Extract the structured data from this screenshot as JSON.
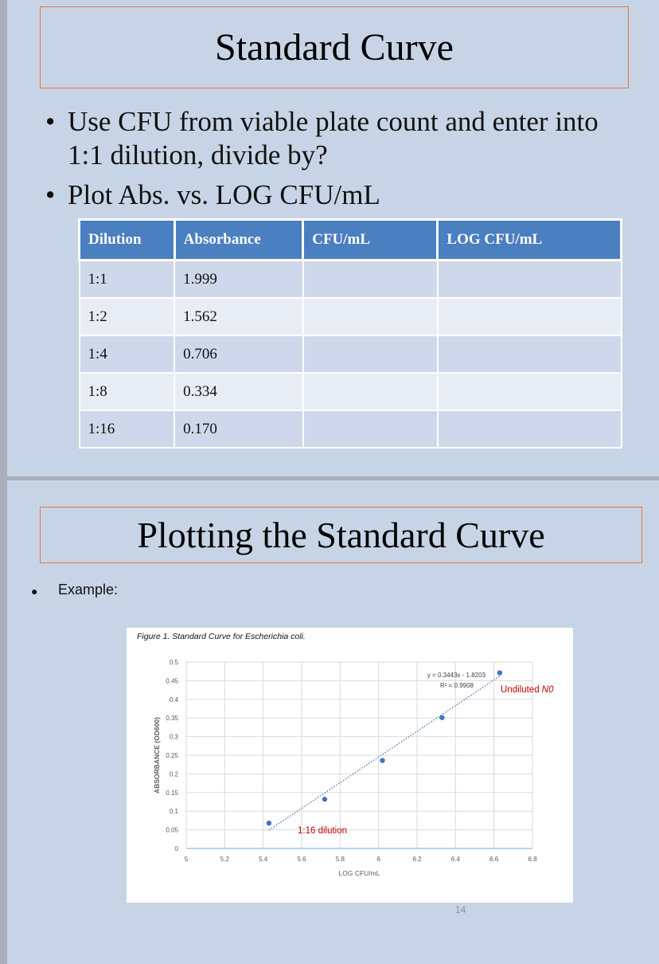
{
  "slide1": {
    "title": "Standard Curve",
    "bullets": [
      "Use CFU from viable plate count and enter into 1:1 dilution, divide by?",
      "Plot Abs. vs. LOG CFU/mL"
    ],
    "table": {
      "headers": [
        "Dilution",
        "Absorbance",
        "CFU/mL",
        "LOG CFU/mL"
      ],
      "rows": [
        [
          "1:1",
          "1.999",
          "",
          ""
        ],
        [
          "1:2",
          "1.562",
          "",
          ""
        ],
        [
          "1:4",
          "0.706",
          "",
          ""
        ],
        [
          "1:8",
          "0.334",
          "",
          ""
        ],
        [
          "1:16",
          "0.170",
          "",
          ""
        ]
      ]
    }
  },
  "slide2": {
    "title": "Plotting the Standard Curve",
    "bullet": "Example:",
    "figure_caption": "Figure 1.  Standard Curve for Escherichia coli.",
    "page_number": "14"
  },
  "chart_data": {
    "type": "scatter",
    "title": "",
    "xlabel": "LOG CFU/mL",
    "ylabel": "ABSORBANCE (OD600)",
    "xlim": [
      5,
      6.8
    ],
    "ylim": [
      0,
      0.5
    ],
    "x_ticks": [
      "5",
      "5.2",
      "5.4",
      "5.6",
      "5.8",
      "6",
      "6.2",
      "6.4",
      "6.6",
      "6.8"
    ],
    "y_ticks": [
      "0",
      "0.05",
      "0.1",
      "0.15",
      "0.2",
      "0.25",
      "0.3",
      "0.35",
      "0.4",
      "0.45",
      "0.5"
    ],
    "grid": true,
    "points": [
      {
        "x": 5.43,
        "y": 0.068
      },
      {
        "x": 5.72,
        "y": 0.132
      },
      {
        "x": 6.02,
        "y": 0.236
      },
      {
        "x": 6.33,
        "y": 0.351
      },
      {
        "x": 6.63,
        "y": 0.471
      }
    ],
    "trendline": {
      "slope": 0.3443,
      "intercept": -1.8203,
      "x_range": [
        5.43,
        6.63
      ],
      "style": "dotted"
    },
    "equation": "y = 0.3443x - 1.8203",
    "r_squared": "R² = 0.9908",
    "annotations": {
      "top_label": "Undiluted ",
      "top_label_italic": "N0",
      "bottom_label": "1:16 dilution"
    },
    "colors": {
      "points": "#4472c4",
      "trendline": "#4472c4",
      "annotation": "#c00000",
      "grid": "#d9d9d9"
    }
  }
}
